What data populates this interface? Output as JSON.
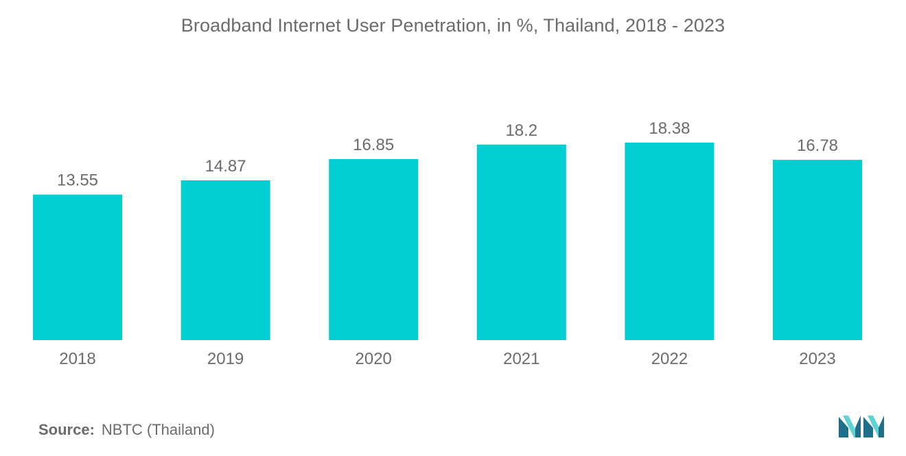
{
  "chart_data": {
    "type": "bar",
    "title": "Broadband Internet User Penetration, in %, Thailand, 2018 - 2023",
    "categories": [
      "2018",
      "2019",
      "2020",
      "2021",
      "2022",
      "2023"
    ],
    "values": [
      13.55,
      14.87,
      16.85,
      18.2,
      18.38,
      16.78
    ],
    "value_labels": [
      "13.55",
      "14.87",
      "16.85",
      "18.2",
      "18.38",
      "16.78"
    ],
    "xlabel": "",
    "ylabel": "",
    "ylim": [
      0,
      18.38
    ],
    "grid": false,
    "legend": "none",
    "bar_color": "#00ced1"
  },
  "source": {
    "label": "Source:",
    "text": "NBTC (Thailand)"
  },
  "colors": {
    "text": "#6b6b6b",
    "bar": "#00ced1",
    "logo_dark": "#1f6f8b",
    "logo_light": "#5fd3d6"
  },
  "logo": {
    "icon": "mordor-logo-icon"
  }
}
